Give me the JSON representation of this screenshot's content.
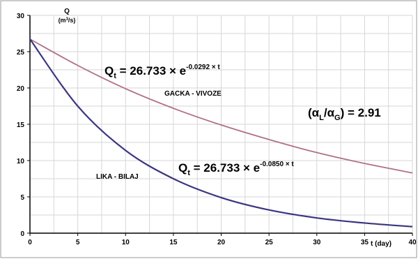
{
  "chart_data": {
    "type": "line",
    "ylabel_main": "Q",
    "ylabel_unit_base": "(m",
    "ylabel_unit_sup": "3",
    "ylabel_unit_end": "/s)",
    "xlabel": "t (day)",
    "xlim": [
      0,
      40
    ],
    "ylim": [
      0,
      30
    ],
    "x_ticks": [
      0,
      5,
      10,
      15,
      20,
      25,
      30,
      35,
      40
    ],
    "y_ticks": [
      0,
      5,
      10,
      15,
      20,
      25,
      30
    ],
    "grid": true,
    "legend": "none",
    "series": [
      {
        "name": "GACKA - VIVOZE",
        "color": "#b0708a",
        "x": [
          0,
          5,
          10,
          15,
          20,
          25,
          30,
          35,
          40
        ],
        "y": [
          26.73,
          23.1,
          19.9,
          17.2,
          14.9,
          12.9,
          11.1,
          9.6,
          8.3
        ]
      },
      {
        "name": "LIKA - BILAJ",
        "color": "#3a3580",
        "x": [
          0,
          5,
          10,
          15,
          20,
          25,
          30,
          35,
          40
        ],
        "y": [
          26.73,
          17.5,
          11.4,
          7.5,
          4.9,
          3.2,
          2.1,
          1.4,
          0.9
        ]
      }
    ],
    "annotations": {
      "eq_gacka": {
        "q": "Q",
        "sub": "t",
        "rest": " = 26.733 × e",
        "exp": "-0.0292 × t"
      },
      "eq_lika": {
        "q": "Q",
        "sub": "t",
        "rest": " = 26.733 × e",
        "exp": "-0.0850 × t"
      },
      "ratio": {
        "open": "(α",
        "sub1": "L",
        "mid": "/α",
        "sub2": "G",
        "close": ") = 2.91"
      }
    },
    "colors": {
      "grid": "#d6d6d6",
      "axis": "#000000",
      "frame": "#9a9a9a"
    }
  }
}
